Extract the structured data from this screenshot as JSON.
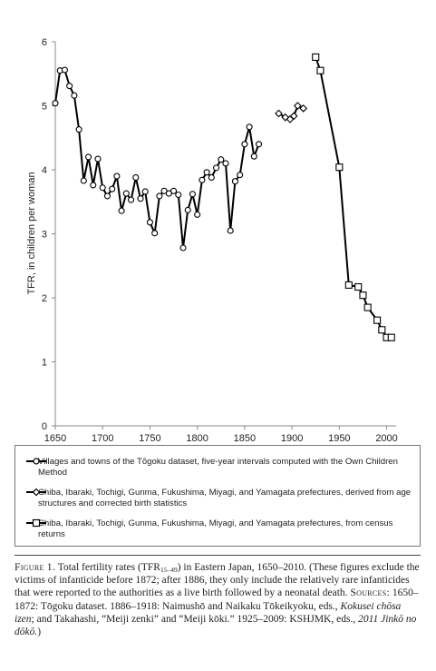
{
  "chart_data": {
    "type": "line",
    "ylabel": "TFR, in children per woman",
    "xlabel": "",
    "xlim": [
      1650,
      2010
    ],
    "ylim": [
      0,
      6
    ],
    "x_ticks": [
      "1650",
      "1700",
      "1750",
      "1800",
      "1850",
      "1900",
      "1950",
      "2000"
    ],
    "y_ticks": [
      "0",
      "1",
      "2",
      "3",
      "4",
      "5",
      "6"
    ],
    "grid": false,
    "legend_position": "bottom",
    "series": [
      {
        "name": "Villages and towns of the Tōgoku dataset, five-year intervals computed with the Own Children Method",
        "marker": "circle",
        "x": [
          1650,
          1655,
          1660,
          1665,
          1670,
          1675,
          1680,
          1685,
          1690,
          1695,
          1700,
          1705,
          1710,
          1715,
          1720,
          1725,
          1730,
          1735,
          1740,
          1745,
          1750,
          1755,
          1760,
          1765,
          1770,
          1775,
          1780,
          1785,
          1790,
          1795,
          1800,
          1805,
          1810,
          1815,
          1820,
          1825,
          1830,
          1835,
          1840,
          1845,
          1850,
          1855,
          1860,
          1865
        ],
        "y": [
          5.04,
          5.55,
          5.56,
          5.31,
          5.16,
          4.63,
          3.83,
          4.2,
          3.76,
          4.17,
          3.72,
          3.59,
          3.7,
          3.9,
          3.36,
          3.63,
          3.53,
          3.88,
          3.55,
          3.66,
          3.18,
          3.01,
          3.59,
          3.67,
          3.63,
          3.67,
          3.61,
          2.78,
          3.37,
          3.62,
          3.3,
          3.84,
          3.96,
          3.88,
          4.03,
          4.16,
          4.1,
          3.05,
          3.82,
          3.92,
          4.4,
          4.67,
          4.21,
          4.4
        ]
      },
      {
        "name": "Chiba, Ibaraki, Tochigi, Gunma, Fukushima, Miyagi, and Yamagata prefectures, derived from age structures and corrected birth statistics",
        "marker": "diamond",
        "x": [
          1886,
          1893,
          1898,
          1902,
          1906,
          1912
        ],
        "y": [
          4.88,
          4.82,
          4.79,
          4.84,
          5.0,
          4.96
        ]
      },
      {
        "name": "Chiba, Ibaraki, Tochigi, Gunma, Fukushima, Miyagi, and Yamagata prefectures, from census returns",
        "marker": "square",
        "x": [
          1925,
          1930,
          1950,
          1960,
          1970,
          1975,
          1980,
          1990,
          1995,
          2000,
          2005
        ],
        "y": [
          5.76,
          5.55,
          4.04,
          2.2,
          2.17,
          2.04,
          1.85,
          1.65,
          1.5,
          1.38,
          1.38
        ]
      }
    ]
  },
  "caption": {
    "label": "Figure 1.",
    "title_pre": "Total fertility rates (TFR",
    "title_sub": "15–49",
    "title_post": ") in Eastern Japan, 1650–2010. (These figures exclude the victims of infanticide before 1872; after 1886, they only include the relatively rare infanticides that were reported to the authorities as a live birth followed by a neonatal death.",
    "sources_label": "Sources:",
    "sources_1": "1650–1872: Tōgoku dataset. 1886–1918: Naimushō and Naikaku Tōkeikyoku, eds.,",
    "sources_1_italic": "Kokusei chōsa izen",
    "sources_2": "; and Takahashi, “Meiji zenki” and “Meiji kōki.” 1925–2009: KSHJMK, eds.,",
    "sources_2_italic": "2011 Jinkō no dōkō.",
    "sources_end": ")"
  }
}
